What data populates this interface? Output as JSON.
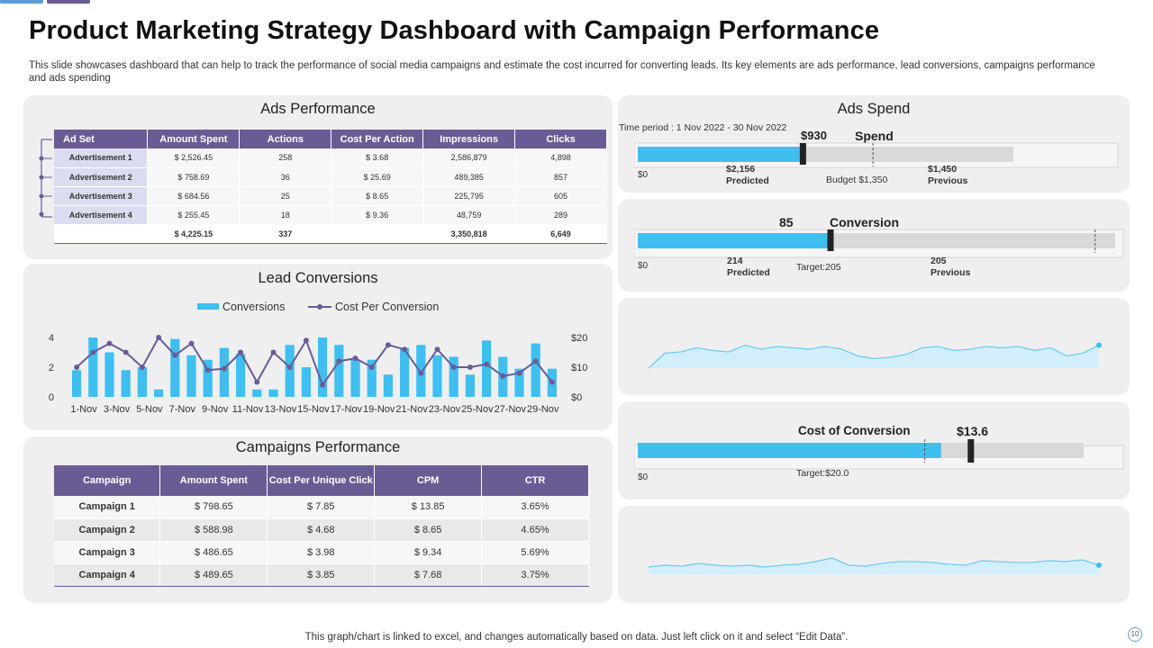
{
  "title": "Product Marketing Strategy Dashboard with Campaign Performance",
  "description": "This slide showcases dashboard that can help to track the performance of social media campaigns and estimate the cost incurred for converting leads. Its key elements are ads performance, lead conversions, campaigns performance and ads spending",
  "footer": "This graph/chart is linked to excel,  and changes automatically based on data. Just left click on it and select “Edit Data”.",
  "page_number": "10",
  "colors": {
    "accent": "#6b5b95",
    "bar": "#3fbef0",
    "panel": "#efeff0",
    "track": "#d9d9d9",
    "sparkline": "#6ccbf0",
    "sparkfill": "#d3eefb"
  },
  "ads_performance": {
    "title": "Ads Performance",
    "headers": [
      "Ad Set",
      "Amount Spent",
      "Actions",
      "Cost Per Action",
      "Impressions",
      "Clicks"
    ],
    "rows": [
      [
        "Advertisement 1",
        "$ 2,526.45",
        "258",
        "$  3.68",
        "2,586,879",
        "4,898"
      ],
      [
        "Advertisement 2",
        "$    758.69",
        "36",
        "$ 25.69",
        "489,385",
        "857"
      ],
      [
        "Advertisement 3",
        "$    684.56",
        "25",
        "$  8.65",
        "225,795",
        "605"
      ],
      [
        "Advertisement 4",
        "$    255.45",
        "18",
        "$  9.36",
        "48,759",
        "289"
      ]
    ],
    "total": [
      "",
      "$ 4,225.15",
      "337",
      "",
      "3,350,818",
      "6,649"
    ]
  },
  "lead_conversions": {
    "title": "Lead Conversions",
    "legend": {
      "bars": "Conversions",
      "line": "Cost Per Conversion"
    },
    "left_ticks": [
      "0",
      "2",
      "4"
    ],
    "right_ticks": [
      "$0",
      "$10",
      "$20"
    ]
  },
  "campaigns_performance": {
    "title": "Campaigns Performance",
    "headers": [
      "Campaign",
      "Amount Spent",
      "Cost Per Unique Click",
      "CPM",
      "CTR"
    ],
    "rows": [
      [
        "Campaign 1",
        "$ 798.65",
        "$ 7.85",
        "$ 13.85",
        "3.65%"
      ],
      [
        "Campaign 2",
        "$ 588.98",
        "$ 4.68",
        "$  8.65",
        "4.65%"
      ],
      [
        "Campaign 3",
        "$ 486.65",
        "$ 3.98",
        "$  9.34",
        "5.69%"
      ],
      [
        "Campaign 4",
        "$ 489.65",
        "$ 3.85",
        "$  7.68",
        "3.75%"
      ]
    ]
  },
  "ads_spend": {
    "title": "Ads Spend",
    "time_period": "Time period : 1 Nov 2022 - 30 Nov 2022",
    "value": "$930",
    "label": "Spend",
    "zero": "$0",
    "predicted_value": "$2,156",
    "predicted_label": "Predicted",
    "budget": "Budget $1,350",
    "previous_value": "$1,450",
    "previous_label": "Previous"
  },
  "conversion": {
    "value": "85",
    "label": "Conversion",
    "zero": "$0",
    "predicted_value": "214",
    "predicted_label": "Predicted",
    "target": "Target:205",
    "previous_value": "205",
    "previous_label": "Previous"
  },
  "cost_of_conversion": {
    "label": "Cost  of Conversion",
    "value": "$13.6",
    "zero": "$0",
    "target": "Target:$20.0"
  },
  "chart_data": [
    {
      "type": "bar",
      "name": "lead-conversions",
      "categories": [
        "1-Nov",
        "2-Nov",
        "3-Nov",
        "4-Nov",
        "5-Nov",
        "6-Nov",
        "7-Nov",
        "8-Nov",
        "9-Nov",
        "10-Nov",
        "11-Nov",
        "12-Nov",
        "13-Nov",
        "14-Nov",
        "15-Nov",
        "16-Nov",
        "17-Nov",
        "18-Nov",
        "19-Nov",
        "20-Nov",
        "21-Nov",
        "22-Nov",
        "23-Nov",
        "24-Nov",
        "25-Nov",
        "26-Nov",
        "27-Nov",
        "28-Nov",
        "29-Nov",
        "30-Nov"
      ],
      "tick_labels": [
        "1-Nov",
        "3-Nov",
        "5-Nov",
        "7-Nov",
        "9-Nov",
        "11-Nov",
        "13-Nov",
        "15-Nov",
        "17-Nov",
        "19-Nov",
        "21-Nov",
        "23-Nov",
        "25-Nov",
        "27-Nov",
        "29-Nov"
      ],
      "series": [
        {
          "name": "Conversions",
          "axis": "left",
          "values": [
            1.8,
            4.0,
            3.0,
            1.8,
            2.0,
            0.5,
            3.9,
            2.8,
            2.5,
            3.3,
            2.9,
            0.5,
            0.5,
            3.5,
            2.0,
            4.0,
            3.5,
            2.5,
            2.5,
            1.5,
            3.3,
            3.5,
            2.8,
            2.7,
            1.5,
            3.8,
            2.7,
            1.9,
            3.6,
            1.9
          ]
        },
        {
          "name": "Cost Per Conversion",
          "axis": "right",
          "type": "line",
          "values": [
            10,
            15,
            18,
            15,
            10,
            20,
            14,
            18,
            9,
            9.5,
            15,
            5,
            15,
            10,
            19,
            4,
            12,
            13,
            10,
            17.5,
            16,
            8,
            16,
            10,
            10,
            11,
            7,
            8,
            12,
            5
          ]
        }
      ],
      "ylim_left": [
        0,
        4
      ],
      "ylim_right": [
        0,
        20
      ]
    },
    {
      "type": "area",
      "name": "sparkline-1",
      "values": [
        0,
        11,
        12,
        15,
        13,
        12,
        17,
        14,
        16,
        15,
        14,
        16,
        14,
        9,
        7,
        8,
        10,
        15,
        16,
        13,
        14,
        16,
        15,
        16,
        13,
        15,
        9,
        11,
        17
      ],
      "ylim": [
        0,
        20
      ]
    },
    {
      "type": "area",
      "name": "sparkline-2",
      "values": [
        4,
        5,
        4.5,
        6,
        5,
        4.5,
        5,
        4,
        5,
        5.5,
        7,
        9,
        5,
        4.5,
        6,
        7,
        7,
        6.5,
        5.5,
        5,
        7.5,
        7,
        6.5,
        6.5,
        7.5,
        7,
        8,
        5
      ],
      "ylim": [
        0,
        16
      ]
    },
    {
      "type": "bar",
      "name": "ads-spend-bullet",
      "value": 930,
      "predicted": 2156,
      "budget": 1350,
      "previous": 1450,
      "scale_max": 2156
    },
    {
      "type": "bar",
      "name": "conversion-bullet",
      "value": 85,
      "predicted": 214,
      "target": 205,
      "previous": 205,
      "scale_max": 214
    },
    {
      "type": "bar",
      "name": "cost-of-conversion-bullet",
      "value": 13.6,
      "target": 20,
      "marker": 14.8,
      "scale_max": 20
    }
  ]
}
